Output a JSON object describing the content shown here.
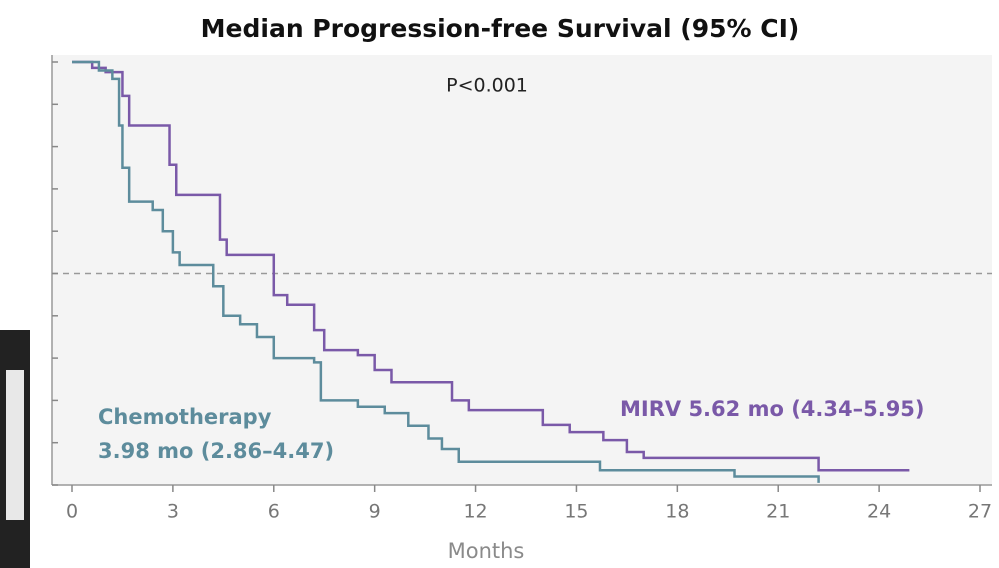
{
  "chart_data": {
    "type": "step",
    "title": "Median Progression-free Survival (95% CI)",
    "x_label": "Months",
    "annotations": [
      "P<0.001",
      "Chemotherapy",
      "3.98 mo (2.86–4.47)",
      "MIRV 5.62 mo (4.34–5.95)"
    ],
    "xlim": [
      0,
      27
    ],
    "xticks": [
      0,
      3,
      6,
      9,
      12,
      15,
      18,
      21,
      24,
      27
    ],
    "ylim": [
      0,
      1
    ],
    "yticks": [
      0,
      0.1,
      0.2,
      0.3,
      0.4,
      0.5,
      0.6,
      0.7,
      0.8,
      0.9,
      1
    ],
    "median_line": 0.5,
    "series": [
      {
        "name": "MIRV",
        "color": "#7a59a8",
        "x": [
          0,
          0.6,
          1.0,
          1.5,
          1.7,
          2.9,
          3.1,
          4.4,
          4.6,
          6.0,
          6.4,
          7.2,
          7.5,
          8.5,
          9.0,
          9.5,
          11.3,
          11.8,
          14.0,
          14.8,
          15.8,
          16.5,
          17.0,
          22.2,
          24.9
        ],
        "values": [
          1,
          0.986,
          0.976,
          0.92,
          0.85,
          0.757,
          0.686,
          0.58,
          0.544,
          0.449,
          0.426,
          0.366,
          0.319,
          0.307,
          0.272,
          0.243,
          0.2,
          0.177,
          0.142,
          0.125,
          0.106,
          0.078,
          0.064,
          0.035,
          0.035
        ]
      },
      {
        "name": "Chemotherapy",
        "color": "#5d8c9c",
        "x": [
          0,
          0.8,
          1.2,
          1.4,
          1.5,
          1.7,
          2.4,
          2.7,
          3.0,
          3.2,
          4.2,
          4.5,
          5.0,
          5.5,
          6.0,
          7.2,
          7.4,
          8.5,
          9.3,
          10.0,
          10.6,
          11.0,
          11.5,
          15.7,
          19.7,
          22.2
        ],
        "values": [
          1,
          0.98,
          0.96,
          0.85,
          0.75,
          0.67,
          0.65,
          0.6,
          0.55,
          0.52,
          0.47,
          0.4,
          0.38,
          0.35,
          0.3,
          0.29,
          0.2,
          0.185,
          0.17,
          0.14,
          0.11,
          0.085,
          0.055,
          0.035,
          0.02,
          0.005
        ]
      }
    ]
  }
}
